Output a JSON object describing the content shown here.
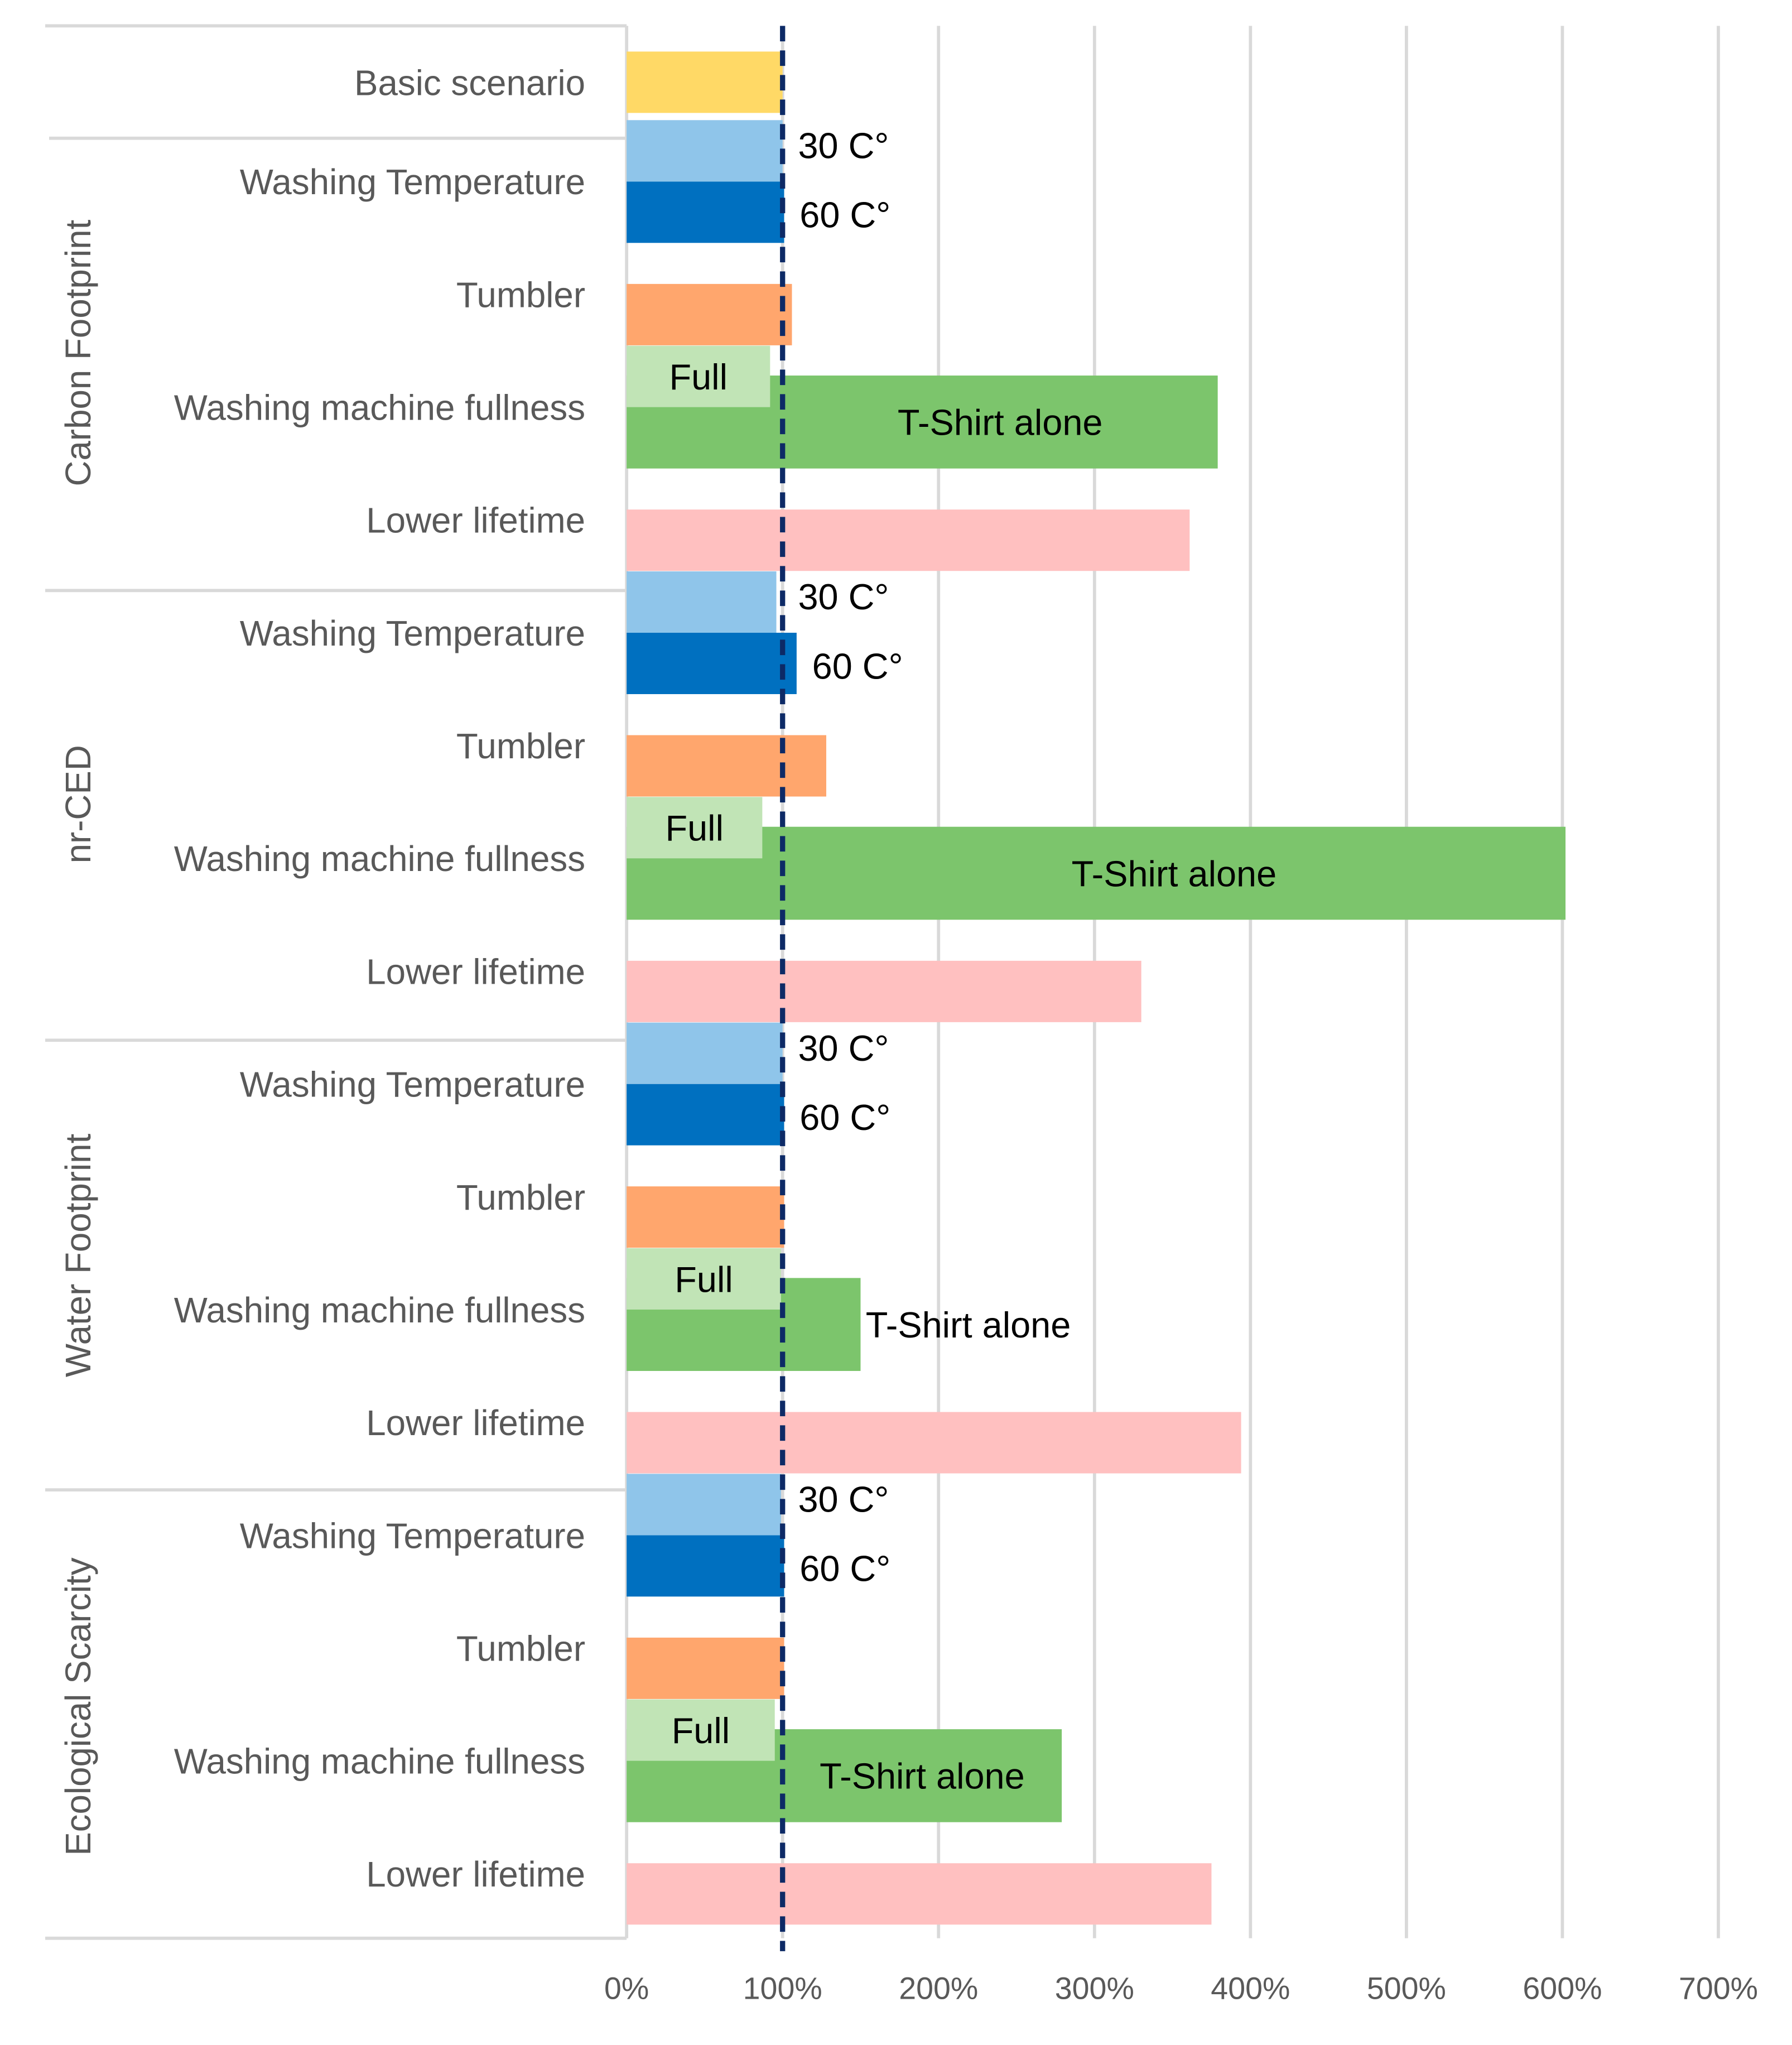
{
  "chart_data": {
    "type": "bar",
    "orientation": "horizontal",
    "title": "",
    "xlabel": "",
    "ylabel": "",
    "xlim": [
      0,
      700
    ],
    "x_ticks": [
      "0%",
      "100%",
      "200%",
      "300%",
      "400%",
      "500%",
      "600%",
      "700%"
    ],
    "reference_line": {
      "value": 100,
      "style": "dashed",
      "color": "#0d2a66"
    },
    "grid": true,
    "colors": {
      "basic": "#ffd966",
      "temp_30": "#8fc5ea",
      "temp_60": "#0070c0",
      "tumbler": "#ffa66d",
      "full": "#c1e4b6",
      "tshirt_alone": "#7cc56c",
      "lower_lifetime": "#ffc0c0",
      "grid": "#d9d9d9",
      "separator": "#d9d9d9"
    },
    "basic_scenario": {
      "label": "Basic scenario",
      "value": 100
    },
    "groups": [
      {
        "name": "Carbon Footprint",
        "rows": [
          {
            "label": "Washing Temperature",
            "bars": [
              {
                "key": "temp_30",
                "value": 100,
                "annotation": "30 C°"
              },
              {
                "key": "temp_60",
                "value": 101,
                "annotation": "60 C°"
              }
            ]
          },
          {
            "label": "Tumbler",
            "bars": [
              {
                "key": "tumbler",
                "value": 106
              }
            ]
          },
          {
            "label": "Washing machine fullness",
            "bars": [
              {
                "key": "full",
                "value": 92,
                "annotation": "Full"
              },
              {
                "key": "tshirt_alone",
                "value": 379,
                "annotation": "T-Shirt alone"
              }
            ]
          },
          {
            "label": "Lower lifetime",
            "bars": [
              {
                "key": "lower_lifetime",
                "value": 361
              }
            ]
          }
        ]
      },
      {
        "name": "nr-CED",
        "rows": [
          {
            "label": "Washing Temperature",
            "bars": [
              {
                "key": "temp_30",
                "value": 96,
                "annotation": "30 C°"
              },
              {
                "key": "temp_60",
                "value": 109,
                "annotation": "60 C°"
              }
            ]
          },
          {
            "label": "Tumbler",
            "bars": [
              {
                "key": "tumbler",
                "value": 128
              }
            ]
          },
          {
            "label": "Washing machine fullness",
            "bars": [
              {
                "key": "full",
                "value": 87,
                "annotation": "Full"
              },
              {
                "key": "tshirt_alone",
                "value": 602,
                "annotation": "T-Shirt alone"
              }
            ]
          },
          {
            "label": "Lower lifetime",
            "bars": [
              {
                "key": "lower_lifetime",
                "value": 330
              }
            ]
          }
        ]
      },
      {
        "name": "Water Footprint",
        "rows": [
          {
            "label": "Washing Temperature",
            "bars": [
              {
                "key": "temp_30",
                "value": 100,
                "annotation": "30 C°"
              },
              {
                "key": "temp_60",
                "value": 101,
                "annotation": "60 C°"
              }
            ]
          },
          {
            "label": "Tumbler",
            "bars": [
              {
                "key": "tumbler",
                "value": 101
              }
            ]
          },
          {
            "label": "Washing machine fullness",
            "bars": [
              {
                "key": "full",
                "value": 99,
                "annotation": "Full"
              },
              {
                "key": "tshirt_alone",
                "value": 150,
                "annotation": "T-Shirt alone"
              }
            ]
          },
          {
            "label": "Lower lifetime",
            "bars": [
              {
                "key": "lower_lifetime",
                "value": 394
              }
            ]
          }
        ]
      },
      {
        "name": "Ecological Scarcity",
        "rows": [
          {
            "label": "Washing Temperature",
            "bars": [
              {
                "key": "temp_30",
                "value": 99,
                "annotation": "30 C°"
              },
              {
                "key": "temp_60",
                "value": 101,
                "annotation": "60 C°"
              }
            ]
          },
          {
            "label": "Tumbler",
            "bars": [
              {
                "key": "tumbler",
                "value": 101
              }
            ]
          },
          {
            "label": "Washing machine fullness",
            "bars": [
              {
                "key": "full",
                "value": 95,
                "annotation": "Full"
              },
              {
                "key": "tshirt_alone",
                "value": 279,
                "annotation": "T-Shirt alone"
              }
            ]
          },
          {
            "label": "Lower lifetime",
            "bars": [
              {
                "key": "lower_lifetime",
                "value": 375
              }
            ]
          }
        ]
      }
    ]
  }
}
